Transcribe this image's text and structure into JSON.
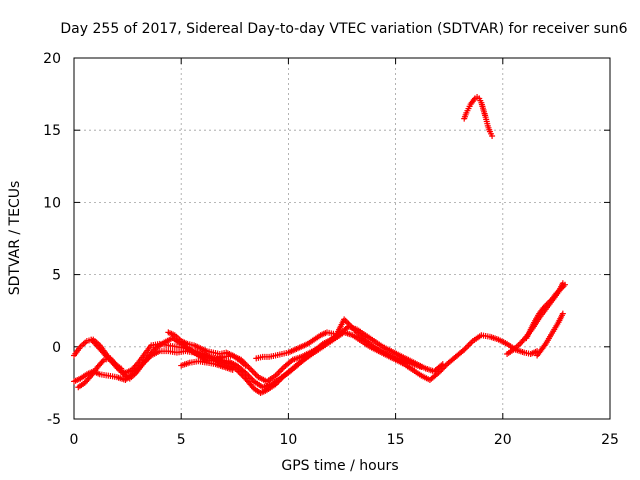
{
  "chart_data": {
    "type": "scatter",
    "title": "Day 255 of 2017, Sidereal Day-to-day VTEC variation (SDTVAR) for receiver sun6",
    "xlabel": "GPS time / hours",
    "ylabel": "SDTVAR / TECUs",
    "xlim": [
      0,
      25
    ],
    "ylim": [
      -5,
      20
    ],
    "xticks": [
      0,
      5,
      10,
      15,
      20,
      25
    ],
    "yticks": [
      -5,
      0,
      5,
      10,
      15,
      20
    ],
    "xtick_labels": [
      "0",
      "5",
      "10",
      "15",
      "20",
      "25"
    ],
    "ytick_labels": [
      "-5",
      "0",
      "5",
      "10",
      "15",
      "20"
    ],
    "grid": true,
    "marker": "plus",
    "color": "#ff0000",
    "series": [
      {
        "name": "track-1",
        "x": [
          0.0,
          0.3,
          0.6,
          0.9,
          1.2,
          1.6,
          2.0,
          2.4,
          2.8,
          3.2,
          3.6,
          4.0,
          4.4,
          4.8,
          5.2,
          5.6,
          6.0,
          6.4,
          6.8,
          7.2,
          7.6,
          8.0,
          8.4,
          8.7,
          9.0,
          9.4,
          9.8,
          10.2,
          10.6,
          11.0,
          11.4,
          11.8,
          12.2,
          12.6,
          13.0,
          13.4,
          13.8,
          14.2,
          14.6,
          15.0,
          15.4,
          15.8,
          16.2,
          16.6,
          17.0,
          17.4,
          17.8,
          18.2,
          18.6,
          19.0,
          19.4,
          19.8,
          20.2,
          20.6,
          21.0,
          21.3,
          21.6
        ],
        "y": [
          -2.4,
          -2.2,
          -1.9,
          -1.7,
          -1.9,
          -2.0,
          -2.1,
          -2.3,
          -1.8,
          -1.2,
          -0.6,
          -0.3,
          -0.3,
          -0.4,
          -0.3,
          -0.4,
          -0.6,
          -0.8,
          -1.0,
          -1.2,
          -1.6,
          -2.2,
          -2.9,
          -3.2,
          -3.0,
          -2.6,
          -2.0,
          -1.5,
          -1.0,
          -0.6,
          -0.2,
          0.2,
          0.6,
          1.0,
          0.8,
          0.4,
          0.0,
          -0.3,
          -0.6,
          -0.9,
          -1.2,
          -1.6,
          -2.0,
          -2.3,
          -1.8,
          -1.2,
          -0.7,
          -0.2,
          0.4,
          0.8,
          0.7,
          0.5,
          0.2,
          -0.2,
          -0.4,
          -0.5,
          -0.3
        ]
      },
      {
        "name": "track-2",
        "x": [
          0.0,
          0.3,
          0.6,
          0.9,
          1.2,
          1.5,
          1.8,
          2.1,
          2.4,
          2.7,
          3.0,
          3.3,
          3.6,
          4.0,
          4.4,
          4.8,
          5.2,
          5.6,
          6.0,
          6.4,
          6.8,
          7.2,
          7.6,
          8.0,
          8.4,
          8.8,
          9.2,
          9.6,
          10.0,
          10.4,
          10.8,
          11.2,
          11.6,
          12.0,
          12.4,
          12.8,
          13.2,
          13.6,
          14.0,
          14.4,
          14.8,
          15.2,
          15.6,
          16.0,
          16.4,
          16.8,
          17.2
        ],
        "y": [
          -0.6,
          0.0,
          0.4,
          0.5,
          0.1,
          -0.5,
          -1.1,
          -1.6,
          -1.8,
          -1.6,
          -1.1,
          -0.5,
          0.1,
          0.2,
          0.1,
          0.0,
          -0.1,
          -0.3,
          -0.5,
          -0.7,
          -0.9,
          -1.0,
          -1.3,
          -1.8,
          -2.4,
          -2.8,
          -2.6,
          -2.2,
          -1.8,
          -1.3,
          -0.8,
          -0.3,
          0.2,
          0.5,
          0.9,
          1.4,
          1.2,
          0.8,
          0.4,
          0.0,
          -0.3,
          -0.6,
          -0.9,
          -1.2,
          -1.5,
          -1.7,
          -1.2
        ]
      },
      {
        "name": "track-3",
        "x": [
          0.2,
          0.5,
          0.8,
          1.1,
          1.4,
          1.7,
          2.0,
          2.3,
          2.6,
          2.9,
          3.2,
          3.5,
          3.8,
          4.2,
          4.6,
          5.0,
          5.4,
          5.8,
          6.2,
          6.6,
          7.0,
          7.4,
          7.8,
          8.2,
          8.6,
          9.0,
          9.4,
          9.8,
          10.2,
          10.6,
          11.0,
          11.4,
          11.8,
          12.2,
          12.6,
          13.0,
          13.4,
          13.8,
          14.2,
          14.6,
          15.0,
          15.4,
          15.8,
          16.2
        ],
        "y": [
          -2.8,
          -2.5,
          -2.0,
          -1.4,
          -0.9,
          -0.8,
          -1.3,
          -1.9,
          -2.2,
          -1.8,
          -1.2,
          -0.6,
          -0.1,
          0.3,
          0.6,
          0.2,
          -0.2,
          -0.6,
          -1.0,
          -0.9,
          -0.7,
          -0.6,
          -0.9,
          -1.5,
          -2.1,
          -2.4,
          -2.0,
          -1.4,
          -0.9,
          -0.7,
          -0.4,
          -0.1,
          0.3,
          0.7,
          1.9,
          1.3,
          0.7,
          0.2,
          -0.2,
          -0.5,
          -0.8,
          -1.0,
          -1.2,
          -1.4
        ]
      },
      {
        "name": "track-4",
        "x": [
          0.8,
          1.0,
          1.3,
          1.6,
          1.9,
          2.2
        ],
        "y": [
          0.5,
          0.2,
          -0.3,
          -0.8,
          -1.2,
          -1.5
        ]
      },
      {
        "name": "track-5",
        "x": [
          4.4,
          4.7,
          5.0,
          5.3,
          5.6,
          5.9,
          6.2,
          6.5,
          6.8,
          7.1,
          7.4,
          7.7,
          8.0
        ],
        "y": [
          1.0,
          0.8,
          0.4,
          0.2,
          0.1,
          -0.1,
          -0.3,
          -0.4,
          -0.5,
          -0.4,
          -0.6,
          -0.9,
          -1.3
        ]
      },
      {
        "name": "track-6",
        "x": [
          5.0,
          5.4,
          5.8,
          6.2,
          6.6,
          7.0,
          7.4
        ],
        "y": [
          -1.3,
          -1.1,
          -1.0,
          -1.1,
          -1.2,
          -1.4,
          -1.6
        ]
      },
      {
        "name": "track-7",
        "x": [
          8.5,
          8.8,
          9.1,
          9.4,
          9.7,
          10.0,
          10.3,
          10.6,
          10.9,
          11.2,
          11.5,
          11.8,
          12.1
        ],
        "y": [
          -0.8,
          -0.7,
          -0.7,
          -0.6,
          -0.5,
          -0.4,
          -0.2,
          0.0,
          0.2,
          0.5,
          0.8,
          1.0,
          0.9
        ]
      },
      {
        "name": "track-8",
        "x": [
          20.2,
          20.5,
          20.8,
          21.1,
          21.4,
          21.7,
          22.0,
          22.3,
          22.6,
          22.8
        ],
        "y": [
          -0.5,
          -0.2,
          0.2,
          0.7,
          1.3,
          2.0,
          2.6,
          3.2,
          3.8,
          4.4
        ]
      },
      {
        "name": "track-9",
        "x": [
          21.1,
          21.3,
          21.5,
          21.7,
          21.9,
          22.1,
          22.3,
          22.5,
          22.7,
          22.9
        ],
        "y": [
          0.6,
          1.2,
          1.8,
          2.3,
          2.7,
          3.0,
          3.3,
          3.7,
          4.0,
          4.3
        ]
      },
      {
        "name": "track-10",
        "x": [
          21.6,
          21.8,
          22.0,
          22.2,
          22.4,
          22.6,
          22.8
        ],
        "y": [
          -0.6,
          -0.2,
          0.2,
          0.7,
          1.2,
          1.7,
          2.3
        ]
      },
      {
        "name": "track-11",
        "x": [
          18.2,
          18.3,
          18.4,
          18.5,
          18.6,
          18.7,
          18.8,
          18.9,
          19.0,
          19.1,
          19.2,
          19.3,
          19.4,
          19.5
        ],
        "y": [
          15.8,
          16.2,
          16.5,
          16.8,
          17.0,
          17.2,
          17.3,
          17.2,
          16.9,
          16.4,
          15.9,
          15.3,
          14.9,
          14.6
        ]
      }
    ]
  }
}
